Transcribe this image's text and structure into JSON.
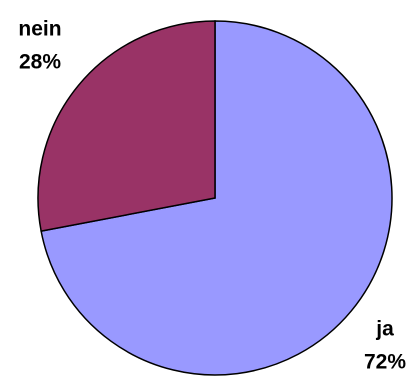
{
  "chart_data": {
    "type": "pie",
    "categories": [
      "ja",
      "nein"
    ],
    "values": [
      72,
      28
    ],
    "value_labels": [
      "72%",
      "28%"
    ],
    "colors": [
      "#9999ff",
      "#993366"
    ]
  }
}
